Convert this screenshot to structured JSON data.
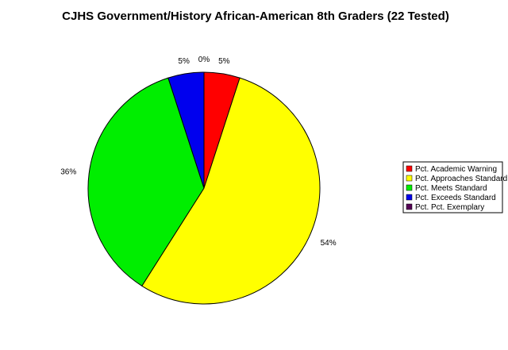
{
  "chart_data": {
    "type": "pie",
    "title": "CJHS Government/History African-American 8th Graders (22 Tested)",
    "legend_position": "right",
    "slices": [
      {
        "name": "Pct. Academic Warning",
        "value": 5,
        "label": "5%",
        "color": "#ff0000"
      },
      {
        "name": "Pct. Approaches Standard",
        "value": 54,
        "label": "54%",
        "color": "#ffff00"
      },
      {
        "name": "Pct. Meets Standard",
        "value": 36,
        "label": "36%",
        "color": "#00ee00"
      },
      {
        "name": "Pct. Exceeds Standard",
        "value": 5,
        "label": "5%",
        "color": "#0000ee"
      },
      {
        "name": "Pct. Pct. Exemplary",
        "value": 0,
        "label": "0%",
        "color": "#550055"
      }
    ]
  }
}
